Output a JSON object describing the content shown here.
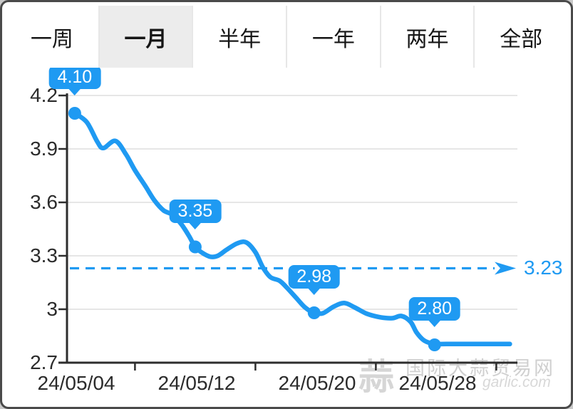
{
  "tabbar": {
    "tabs": [
      {
        "key": "one-week",
        "label": "一周",
        "selected": false
      },
      {
        "key": "one-month",
        "label": "一月",
        "selected": true
      },
      {
        "key": "half-year",
        "label": "半年",
        "selected": false
      },
      {
        "key": "one-year",
        "label": "一年",
        "selected": false
      },
      {
        "key": "two-years",
        "label": "两年",
        "selected": false
      },
      {
        "key": "all",
        "label": "全部",
        "selected": false
      }
    ]
  },
  "chart_data": {
    "type": "line",
    "ylabel": "",
    "xlabel": "",
    "ylim": [
      2.7,
      4.2
    ],
    "grid": true,
    "line_color": "#1f9af2",
    "axis_color": "#2d2d2d",
    "grid_color": "#dedede",
    "y_axis": {
      "ticks": [
        {
          "value": 4.2,
          "label": "4.2"
        },
        {
          "value": 3.9,
          "label": "3.9"
        },
        {
          "value": 3.6,
          "label": "3.6"
        },
        {
          "value": 3.3,
          "label": "3.3"
        },
        {
          "value": 3.0,
          "label": "3"
        },
        {
          "value": 2.7,
          "label": "2.7"
        }
      ]
    },
    "x_axis": {
      "labels": [
        {
          "day": 0,
          "label": "24/05/04"
        },
        {
          "day": 8,
          "label": "24/05/12"
        },
        {
          "day": 16,
          "label": "24/05/20"
        },
        {
          "day": 24,
          "label": "24/05/28"
        }
      ],
      "tick_days": [
        3.9,
        11.9,
        19.9,
        27.9
      ]
    },
    "reference_line": {
      "value": 3.23,
      "label": "3.23"
    },
    "series": [
      {
        "name": "price",
        "points": [
          [
            -0.1,
            4.1
          ],
          [
            0.7,
            4.05
          ],
          [
            1.4,
            3.94
          ],
          [
            1.8,
            3.905
          ],
          [
            2.6,
            3.945
          ],
          [
            3.3,
            3.87
          ],
          [
            3.9,
            3.78
          ],
          [
            4.6,
            3.69
          ],
          [
            5.2,
            3.61
          ],
          [
            5.8,
            3.555
          ],
          [
            6.4,
            3.53
          ],
          [
            7.0,
            3.475
          ],
          [
            7.5,
            3.41
          ],
          [
            7.9,
            3.35
          ],
          [
            8.4,
            3.315
          ],
          [
            8.9,
            3.295
          ],
          [
            9.4,
            3.3
          ],
          [
            10.0,
            3.335
          ],
          [
            10.7,
            3.37
          ],
          [
            11.3,
            3.375
          ],
          [
            11.9,
            3.32
          ],
          [
            12.4,
            3.235
          ],
          [
            12.9,
            3.18
          ],
          [
            13.5,
            3.16
          ],
          [
            14.0,
            3.12
          ],
          [
            14.6,
            3.065
          ],
          [
            15.2,
            3.01
          ],
          [
            15.8,
            2.98
          ],
          [
            16.4,
            2.978
          ],
          [
            17.1,
            3.015
          ],
          [
            17.8,
            3.035
          ],
          [
            18.5,
            3.01
          ],
          [
            19.3,
            2.975
          ],
          [
            20.2,
            2.955
          ],
          [
            21.0,
            2.95
          ],
          [
            21.6,
            2.962
          ],
          [
            22.2,
            2.93
          ],
          [
            22.6,
            2.87
          ],
          [
            23.1,
            2.825
          ],
          [
            23.8,
            2.805
          ],
          [
            24.6,
            2.805
          ],
          [
            28.8,
            2.805
          ]
        ]
      }
    ],
    "markers": [
      {
        "day": -0.1,
        "price": 4.1,
        "label": "4.10"
      },
      {
        "day": 7.9,
        "price": 3.35,
        "label": "3.35"
      },
      {
        "day": 15.8,
        "price": 2.98,
        "label": "2.98"
      },
      {
        "day": 23.8,
        "price": 2.8,
        "label": "2.80"
      }
    ]
  },
  "watermark": {
    "logo_char": "蒜",
    "name": "国际大蒜贸易网",
    "domain": "garlic.com"
  }
}
